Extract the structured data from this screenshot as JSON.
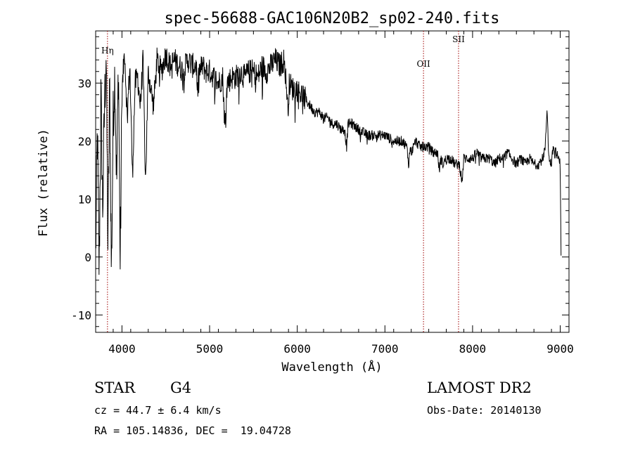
{
  "chart_data": {
    "type": "line",
    "title": "spec-56688-GAC106N20B2_sp02-240.fits",
    "xlabel": "Wavelength (Å)",
    "ylabel": "Flux (relative)",
    "xlim": [
      3700,
      9100
    ],
    "ylim": [
      -13,
      39
    ],
    "x_ticks": [
      4000,
      5000,
      6000,
      7000,
      8000,
      9000
    ],
    "y_ticks": [
      -10,
      0,
      10,
      20,
      30
    ],
    "grid": false,
    "line_color": "#000000",
    "marker_color": "#a00000",
    "series": [
      {
        "x": [
          3700,
          3720,
          3740,
          3760,
          3780,
          3800,
          3820,
          3840,
          3860,
          3880,
          3900,
          3920,
          3940,
          3960,
          3980,
          4000,
          4030,
          4060,
          4090,
          4120,
          4150,
          4180,
          4210,
          4240,
          4270,
          4300,
          4330,
          4360,
          4400,
          4450,
          4500,
          4550,
          4600,
          4650,
          4700,
          4750,
          4800,
          4850,
          4860,
          4880,
          4920,
          4960,
          5000,
          5050,
          5100,
          5150,
          5175,
          5200,
          5250,
          5300,
          5350,
          5400,
          5450,
          5500,
          5550,
          5600,
          5650,
          5700,
          5750,
          5800,
          5850,
          5880,
          5893,
          5910,
          5950,
          6000,
          6050,
          6100,
          6150,
          6200,
          6250,
          6300,
          6350,
          6400,
          6450,
          6500,
          6540,
          6563,
          6580,
          6620,
          6700,
          6800,
          6900,
          7000,
          7100,
          7200,
          7250,
          7270,
          7290,
          7300,
          7350,
          7400,
          7450,
          7500,
          7550,
          7600,
          7620,
          7640,
          7660,
          7700,
          7750,
          7800,
          7850,
          7880,
          7900,
          7950,
          8000,
          8050,
          8100,
          8150,
          8200,
          8250,
          8300,
          8350,
          8400,
          8450,
          8500,
          8550,
          8600,
          8650,
          8700,
          8750,
          8800,
          8830,
          8850,
          8870,
          8900,
          8920,
          8950,
          8980,
          9000,
          9010
        ],
        "y": [
          0,
          22,
          -3,
          28,
          8,
          25,
          36,
          2,
          30,
          -3,
          24,
          32,
          12,
          34,
          -2,
          28,
          36,
          24,
          33,
          14,
          30,
          31,
          26,
          34,
          13,
          32,
          29,
          26,
          34,
          32,
          35,
          33,
          34,
          33,
          32,
          34,
          33,
          33,
          28,
          32,
          33,
          32,
          32,
          31,
          30,
          31,
          22,
          30,
          31,
          31,
          32,
          31,
          32,
          32,
          31,
          33,
          32,
          33,
          34,
          33,
          34,
          29,
          25,
          30,
          29,
          29,
          28,
          27,
          26,
          25,
          25,
          24,
          24,
          23,
          23,
          22,
          22,
          19,
          23,
          23,
          22,
          21,
          21,
          21,
          20,
          20,
          19,
          16,
          19,
          18,
          20,
          19,
          19,
          19,
          18,
          18,
          15,
          17,
          16,
          17,
          17,
          16,
          16,
          13,
          17,
          17,
          17,
          18,
          17,
          17,
          17,
          16,
          17,
          17,
          18,
          17,
          16,
          17,
          16,
          17,
          16,
          16,
          17,
          19,
          26,
          17,
          16,
          19,
          18,
          17,
          16,
          0
        ]
      }
    ],
    "lines": [
      {
        "label": "Hη",
        "x": 3835
      },
      {
        "label": "OII",
        "x": 7440
      },
      {
        "label": "SII",
        "x": 7840
      }
    ]
  },
  "info": {
    "object_type": "STAR",
    "subclass": "G4",
    "survey": "LAMOST DR2",
    "redshift": "cz = 44.7 ± 6.4 km/s",
    "obs_date": "Obs-Date: 20140130",
    "coords": "RA = 105.14836, DEC =  19.04728"
  }
}
